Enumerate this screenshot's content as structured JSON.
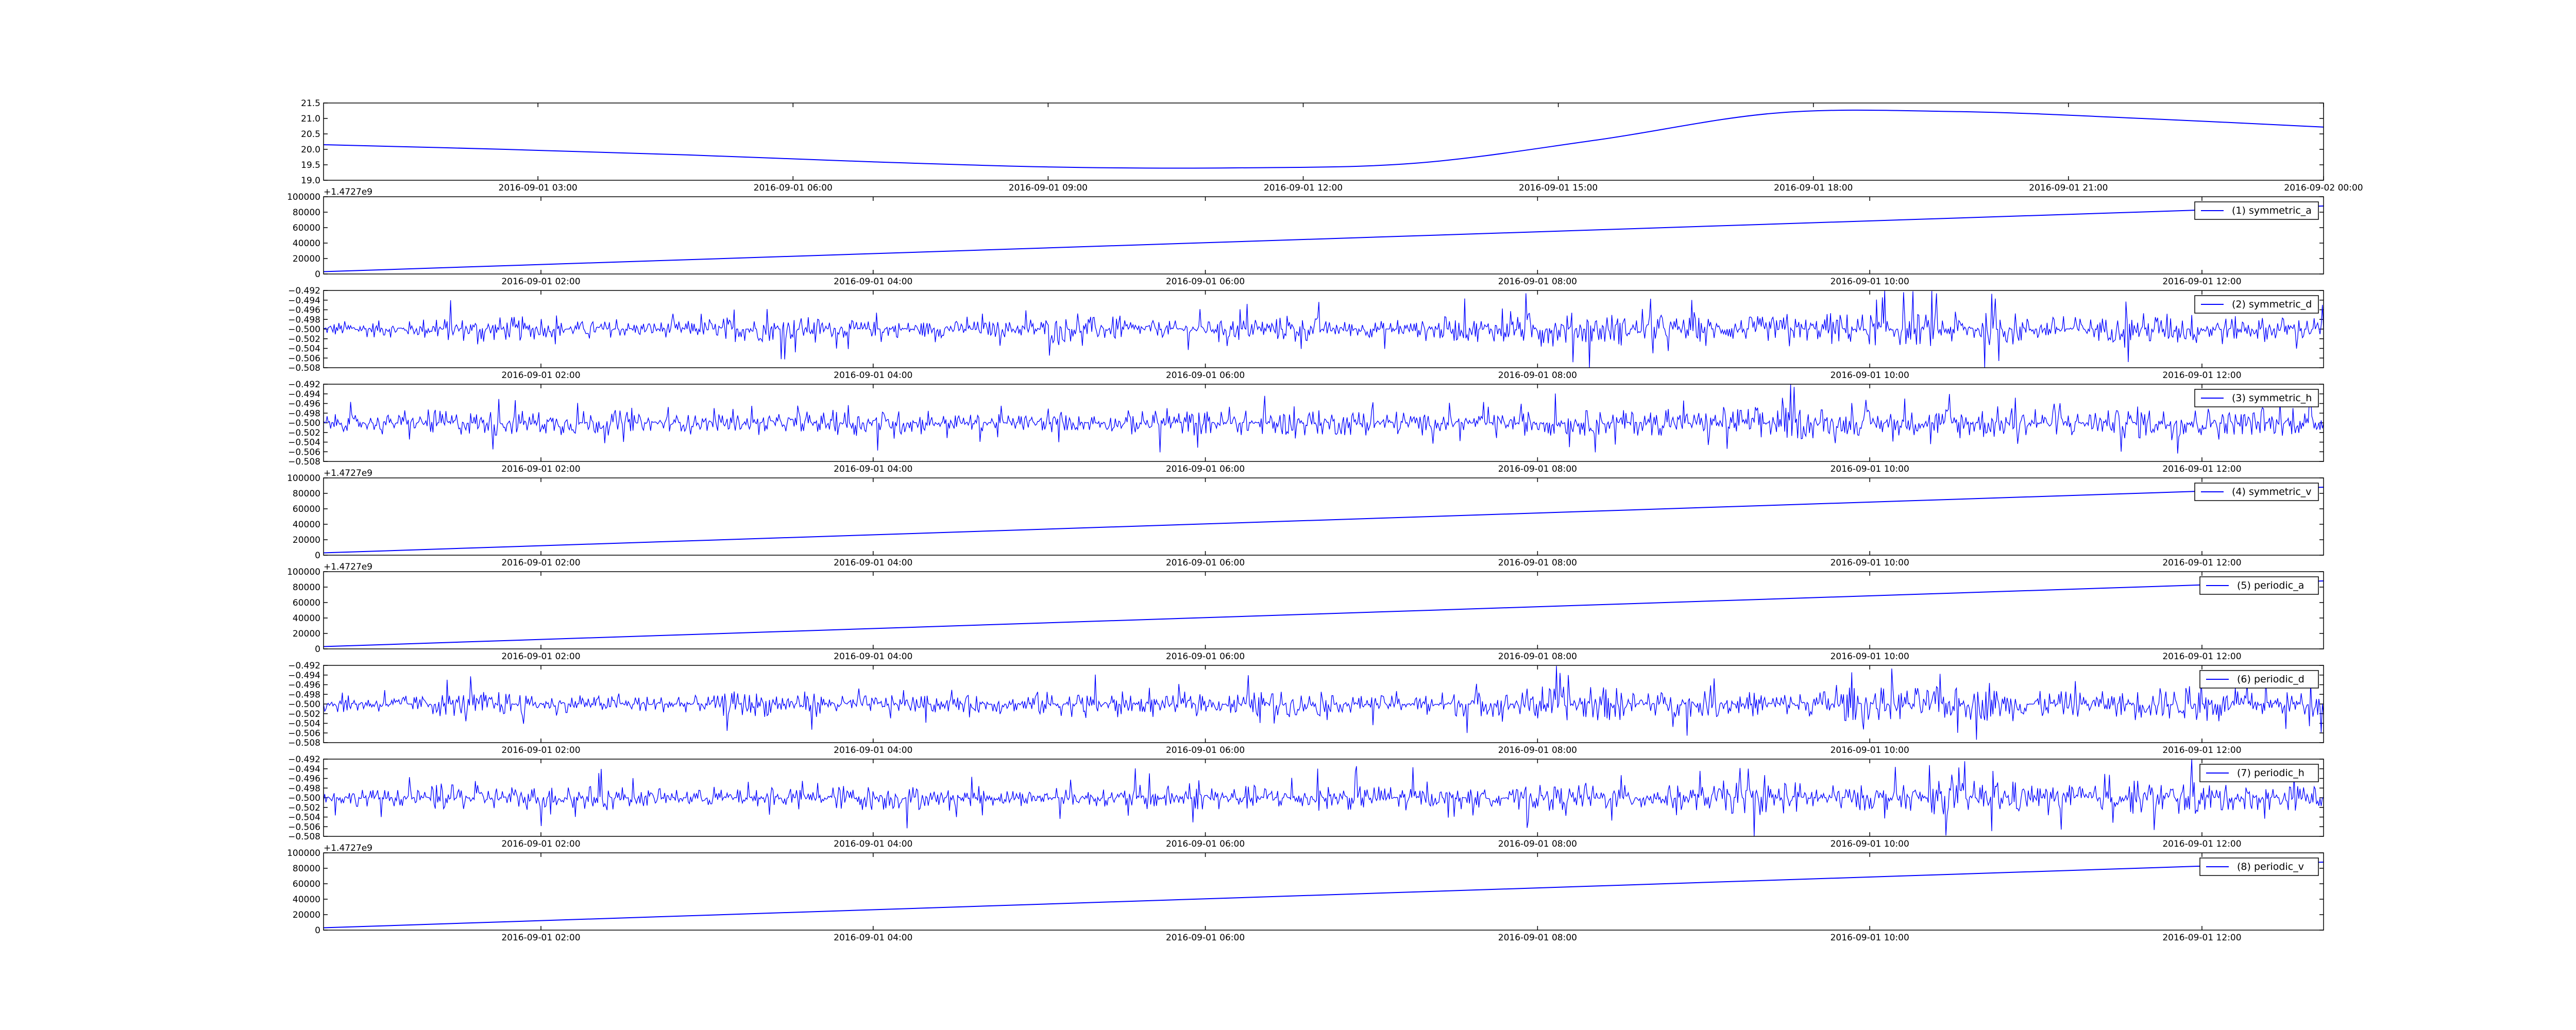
{
  "chart_data": [
    {
      "type": "line",
      "title": "",
      "xlabel": "",
      "ylabel": "",
      "ylim": [
        19.0,
        21.5
      ],
      "ytick_labels": [
        "19.0",
        "19.5",
        "20.0",
        "20.5",
        "21.0",
        "21.5"
      ],
      "xtick_labels": [
        "2016-09-01 03:00",
        "2016-09-01 06:00",
        "2016-09-01 09:00",
        "2016-09-01 12:00",
        "2016-09-01 15:00",
        "2016-09-01 18:00",
        "2016-09-01 21:00",
        "2016-09-02 00:00"
      ],
      "x": [
        "2016-09-01 00:00",
        "2016-09-01 03:00",
        "2016-09-01 06:00",
        "2016-09-01 09:00",
        "2016-09-01 12:00",
        "2016-09-01 13:00",
        "2016-09-01 15:00",
        "2016-09-01 18:00",
        "2016-09-01 21:00",
        "2016-09-01 22:00",
        "2016-09-02 00:00",
        "2016-09-02 01:00"
      ],
      "series": [
        {
          "name": "",
          "values": [
            20.15,
            20.0,
            19.82,
            19.6,
            19.43,
            19.4,
            19.55,
            20.3,
            21.18,
            21.22,
            21.0,
            20.72
          ]
        }
      ],
      "color": "#0000ff",
      "grid": false,
      "legend": null
    },
    {
      "type": "line",
      "title": "",
      "offset_label": "+1.4727e9",
      "ylim": [
        0,
        100000
      ],
      "ytick_labels": [
        "0",
        "20000",
        "40000",
        "60000",
        "80000",
        "100000"
      ],
      "xtick_labels": [
        "2016-09-01 02:00",
        "2016-09-01 04:00",
        "2016-09-01 06:00",
        "2016-09-01 08:00",
        "2016-09-01 10:00",
        "2016-09-01 12:00"
      ],
      "series": [
        {
          "name": "(1) symmetric_a",
          "values": [
            3000,
            88000
          ]
        }
      ],
      "color": "#0000ff",
      "grid": false,
      "legend": "top-right"
    },
    {
      "type": "line",
      "title": "",
      "ylim": [
        -0.508,
        -0.492
      ],
      "ytick_labels": [
        "−0.508",
        "−0.506",
        "−0.504",
        "−0.502",
        "−0.500",
        "−0.498",
        "−0.496",
        "−0.494",
        "−0.492"
      ],
      "xtick_labels": [
        "2016-09-01 02:00",
        "2016-09-01 04:00",
        "2016-09-01 06:00",
        "2016-09-01 08:00",
        "2016-09-01 10:00",
        "2016-09-01 12:00"
      ],
      "series": [
        {
          "name": "(2) symmetric_d",
          "center": -0.5,
          "amplitude_envelope": [
            0.002,
            0.003,
            0.002,
            0.002,
            0.003,
            0.002,
            0.002,
            0.003,
            0.002,
            0.003,
            0.002,
            0.003,
            0.004,
            0.003,
            0.003,
            0.004,
            0.004,
            0.003,
            0.004,
            0.003
          ]
        }
      ],
      "color": "#0000ff",
      "grid": false,
      "legend": "top-right"
    },
    {
      "type": "line",
      "title": "",
      "ylim": [
        -0.508,
        -0.492
      ],
      "ytick_labels": [
        "−0.508",
        "−0.506",
        "−0.504",
        "−0.502",
        "−0.500",
        "−0.498",
        "−0.496",
        "−0.494",
        "−0.492"
      ],
      "xtick_labels": [
        "2016-09-01 02:00",
        "2016-09-01 04:00",
        "2016-09-01 06:00",
        "2016-09-01 08:00",
        "2016-09-01 10:00",
        "2016-09-01 12:00"
      ],
      "series": [
        {
          "name": "(3) symmetric_h",
          "center": -0.5,
          "amplitude_envelope": [
            0.002,
            0.003,
            0.003,
            0.002,
            0.002,
            0.003,
            0.002,
            0.002,
            0.003,
            0.003,
            0.003,
            0.002,
            0.003,
            0.003,
            0.004,
            0.003,
            0.004,
            0.003,
            0.004,
            0.003
          ]
        }
      ],
      "color": "#0000ff",
      "grid": false,
      "legend": "top-right"
    },
    {
      "type": "line",
      "title": "",
      "offset_label": "+1.4727e9",
      "ylim": [
        0,
        100000
      ],
      "ytick_labels": [
        "0",
        "20000",
        "40000",
        "60000",
        "80000",
        "100000"
      ],
      "xtick_labels": [
        "2016-09-01 02:00",
        "2016-09-01 04:00",
        "2016-09-01 06:00",
        "2016-09-01 08:00",
        "2016-09-01 10:00",
        "2016-09-01 12:00"
      ],
      "series": [
        {
          "name": "(4) symmetric_v",
          "values": [
            3000,
            88000
          ]
        }
      ],
      "color": "#0000ff",
      "grid": false,
      "legend": "top-right"
    },
    {
      "type": "line",
      "title": "",
      "offset_label": "+1.4727e9",
      "ylim": [
        0,
        100000
      ],
      "ytick_labels": [
        "0",
        "20000",
        "40000",
        "60000",
        "80000",
        "100000"
      ],
      "xtick_labels": [
        "2016-09-01 02:00",
        "2016-09-01 04:00",
        "2016-09-01 06:00",
        "2016-09-01 08:00",
        "2016-09-01 10:00",
        "2016-09-01 12:00"
      ],
      "series": [
        {
          "name": "(5) periodic_a",
          "values": [
            3000,
            88000
          ]
        }
      ],
      "color": "#0000ff",
      "grid": false,
      "legend": "top-right"
    },
    {
      "type": "line",
      "title": "",
      "ylim": [
        -0.508,
        -0.492
      ],
      "ytick_labels": [
        "−0.508",
        "−0.506",
        "−0.504",
        "−0.502",
        "−0.500",
        "−0.498",
        "−0.496",
        "−0.494",
        "−0.492"
      ],
      "xtick_labels": [
        "2016-09-01 02:00",
        "2016-09-01 04:00",
        "2016-09-01 06:00",
        "2016-09-01 08:00",
        "2016-09-01 10:00",
        "2016-09-01 12:00"
      ],
      "series": [
        {
          "name": "(6) periodic_d",
          "center": -0.5,
          "amplitude_envelope": [
            0.002,
            0.003,
            0.002,
            0.002,
            0.003,
            0.002,
            0.002,
            0.003,
            0.002,
            0.003,
            0.002,
            0.003,
            0.004,
            0.003,
            0.003,
            0.004,
            0.004,
            0.003,
            0.004,
            0.003
          ]
        }
      ],
      "color": "#0000ff",
      "grid": false,
      "legend": "top-right"
    },
    {
      "type": "line",
      "title": "",
      "ylim": [
        -0.508,
        -0.492
      ],
      "ytick_labels": [
        "−0.508",
        "−0.506",
        "−0.504",
        "−0.502",
        "−0.500",
        "−0.498",
        "−0.496",
        "−0.494",
        "−0.492"
      ],
      "xtick_labels": [
        "2016-09-01 02:00",
        "2016-09-01 04:00",
        "2016-09-01 06:00",
        "2016-09-01 08:00",
        "2016-09-01 10:00",
        "2016-09-01 12:00"
      ],
      "series": [
        {
          "name": "(7) periodic_h",
          "center": -0.5,
          "amplitude_envelope": [
            0.002,
            0.003,
            0.003,
            0.002,
            0.002,
            0.003,
            0.002,
            0.002,
            0.003,
            0.003,
            0.003,
            0.002,
            0.003,
            0.003,
            0.004,
            0.003,
            0.004,
            0.003,
            0.004,
            0.003
          ]
        }
      ],
      "color": "#0000ff",
      "grid": false,
      "legend": "top-right"
    },
    {
      "type": "line",
      "title": "",
      "offset_label": "+1.4727e9",
      "ylim": [
        0,
        100000
      ],
      "ytick_labels": [
        "0",
        "20000",
        "40000",
        "60000",
        "80000",
        "100000"
      ],
      "xtick_labels": [
        "2016-09-01 02:00",
        "2016-09-01 04:00",
        "2016-09-01 06:00",
        "2016-09-01 08:00",
        "2016-09-01 10:00",
        "2016-09-01 12:00"
      ],
      "series": [
        {
          "name": "(8) periodic_v",
          "values": [
            3000,
            88000
          ]
        }
      ],
      "color": "#0000ff",
      "grid": false,
      "legend": "top-right"
    }
  ]
}
